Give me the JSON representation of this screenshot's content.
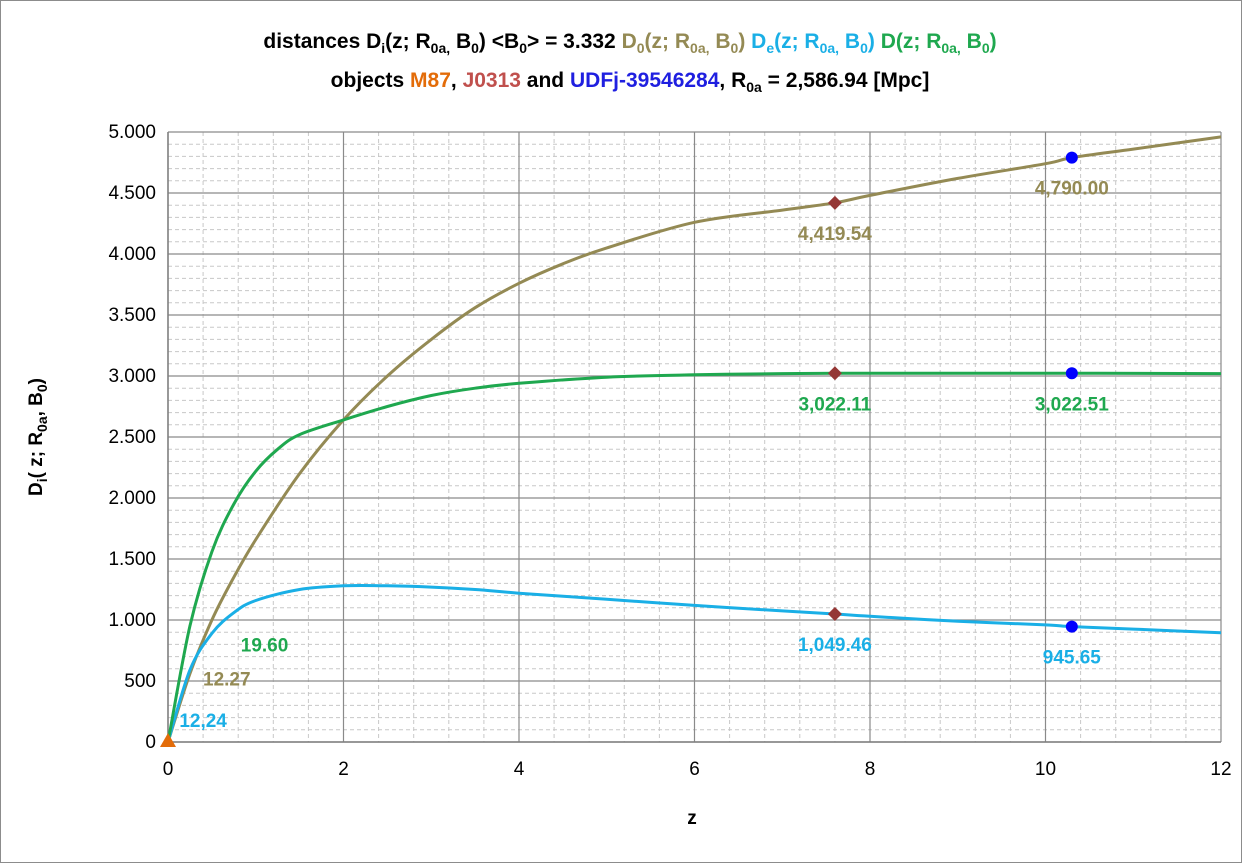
{
  "colors": {
    "D0": "#948A54",
    "De": "#1AAFE6",
    "D": "#1FA84F",
    "M87": "#E36C09",
    "J0313": "#C0504D",
    "UDFj": "#1F1FE0",
    "marker_J0313": "#953735",
    "marker_UDFj": "#0000FF",
    "marker_M87": "#E36C09"
  },
  "title": {
    "line1": {
      "p1": "distances D",
      "p1_sub": "i",
      "p2": "(z; R",
      "p2_sub": "0a,",
      "p3": " B",
      "p3_sub": "0",
      "p4": ")   <B",
      "p4_sub": "0",
      "p5": "> = 3.332   ",
      "d0_a": "D",
      "d0_a_sub": "0",
      "d0_b": "(z; R",
      "d0_b_sub": "0a,",
      "d0_c": " B",
      "d0_c_sub": "0",
      "d0_d": ")   ",
      "de_a": "D",
      "de_a_sub": "e",
      "de_b": "(z; R",
      "de_b_sub": "0a,",
      "de_c": " B",
      "de_c_sub": "0",
      "de_d": ")   ",
      "d_a": "D(z; R",
      "d_a_sub": "0a,",
      "d_b": " B",
      "d_b_sub": "0",
      "d_c": ")"
    },
    "line2": {
      "p1": "objects ",
      "m87": "M87",
      "comma": ", ",
      "j0313": "J0313",
      "and": " and ",
      "udfj": "UDFj-39546284",
      "p2": ", R",
      "p2_sub": "0a",
      "p3": " = 2,586.94   [Mpc]"
    }
  },
  "chart_data": {
    "type": "line",
    "xlabel": "z",
    "ylabel": {
      "a": "D",
      "a_sub": "i",
      "b": "( z; R",
      "b_sub": "0a",
      "c": ", B",
      "c_sub": "0",
      "d": ")"
    },
    "xlim": [
      0,
      12
    ],
    "ylim": [
      0,
      5000
    ],
    "x_ticks": [
      0,
      2,
      4,
      6,
      8,
      10,
      12
    ],
    "x_tick_labels": [
      "0",
      "2",
      "4",
      "6",
      "8",
      "10",
      "12"
    ],
    "y_ticks": [
      0,
      500,
      1000,
      1500,
      2000,
      2500,
      3000,
      3500,
      4000,
      4500,
      5000
    ],
    "y_tick_labels": [
      "0",
      "500",
      "1.000",
      "1.500",
      "2.000",
      "2.500",
      "3.000",
      "3.500",
      "4.000",
      "4.500",
      "5.000"
    ],
    "grid": true,
    "minor_grid": true,
    "series": [
      {
        "name": "D0(z; R0a, B0)",
        "color_key": "D0",
        "x": [
          0,
          0.25,
          0.5,
          0.75,
          1.0,
          1.5,
          2.0,
          2.5,
          3.0,
          3.5,
          4.0,
          4.5,
          5.0,
          6.0,
          7.0,
          7.6,
          8.0,
          9.0,
          10.0,
          10.3,
          11.0,
          12.0
        ],
        "y": [
          0,
          560,
          1000,
          1350,
          1660,
          2200,
          2640,
          3000,
          3300,
          3560,
          3760,
          3920,
          4050,
          4260,
          4360,
          4420,
          4480,
          4620,
          4740,
          4790,
          4860,
          4960
        ]
      },
      {
        "name": "De(z; R0a, B0)",
        "color_key": "De",
        "x": [
          0,
          0.25,
          0.5,
          0.75,
          1.0,
          1.5,
          2.0,
          2.5,
          3.0,
          3.5,
          4.0,
          5.0,
          6.0,
          7.0,
          7.6,
          8.0,
          9.0,
          10.0,
          10.3,
          11.0,
          12.0
        ],
        "y": [
          0,
          590,
          890,
          1060,
          1160,
          1250,
          1280,
          1280,
          1270,
          1250,
          1220,
          1170,
          1120,
          1075,
          1049,
          1030,
          990,
          960,
          946,
          925,
          895
        ]
      },
      {
        "name": "D(z; R0a, B0)",
        "color_key": "D",
        "x": [
          0,
          0.25,
          0.5,
          0.75,
          1.0,
          1.25,
          1.5,
          2.0,
          2.5,
          3.0,
          3.5,
          4.0,
          5.0,
          6.0,
          7.0,
          7.6,
          8.0,
          10.3,
          12.0
        ],
        "y": [
          0,
          950,
          1560,
          1950,
          2220,
          2400,
          2520,
          2640,
          2750,
          2840,
          2900,
          2940,
          2990,
          3010,
          3020,
          3022,
          3022,
          3023,
          3020
        ]
      }
    ],
    "markers": [
      {
        "object": "M87",
        "x": 0,
        "y": 0,
        "shape": "triangle",
        "color_key": "marker_M87"
      },
      {
        "object": "J0313",
        "x": 7.6,
        "y": 4419.54,
        "shape": "diamond",
        "color_key": "marker_J0313"
      },
      {
        "object": "J0313",
        "x": 7.6,
        "y": 3022.11,
        "shape": "diamond",
        "color_key": "marker_J0313"
      },
      {
        "object": "J0313",
        "x": 7.6,
        "y": 1049.46,
        "shape": "diamond",
        "color_key": "marker_J0313"
      },
      {
        "object": "UDFj-39546284",
        "x": 10.3,
        "y": 4790.0,
        "shape": "circle",
        "color_key": "marker_UDFj"
      },
      {
        "object": "UDFj-39546284",
        "x": 10.3,
        "y": 3022.51,
        "shape": "circle",
        "color_key": "marker_UDFj"
      },
      {
        "object": "UDFj-39546284",
        "x": 10.3,
        "y": 945.65,
        "shape": "circle",
        "color_key": "marker_UDFj"
      }
    ],
    "data_labels": [
      {
        "text": "4,419.54",
        "x": 7.6,
        "y": 4419.54,
        "position": "below",
        "color_key": "D0"
      },
      {
        "text": "4,790.00",
        "x": 10.3,
        "y": 4790.0,
        "position": "below",
        "color_key": "D0"
      },
      {
        "text": "3,022.11",
        "x": 7.6,
        "y": 3022.11,
        "position": "below",
        "color_key": "D"
      },
      {
        "text": "3,022.51",
        "x": 10.3,
        "y": 3022.51,
        "position": "below",
        "color_key": "D"
      },
      {
        "text": "1,049.46",
        "x": 7.6,
        "y": 1049.46,
        "position": "below",
        "color_key": "De"
      },
      {
        "text": "945.65",
        "x": 10.3,
        "y": 945.65,
        "position": "below",
        "color_key": "De"
      },
      {
        "text": "19.60",
        "x": 1.1,
        "y": 800,
        "position": "center",
        "color_key": "D"
      },
      {
        "text": "12.27",
        "x": 0.67,
        "y": 520,
        "position": "center",
        "color_key": "D0"
      },
      {
        "text": "12,24",
        "x": 0.4,
        "y": 180,
        "position": "center",
        "color_key": "De"
      }
    ]
  }
}
